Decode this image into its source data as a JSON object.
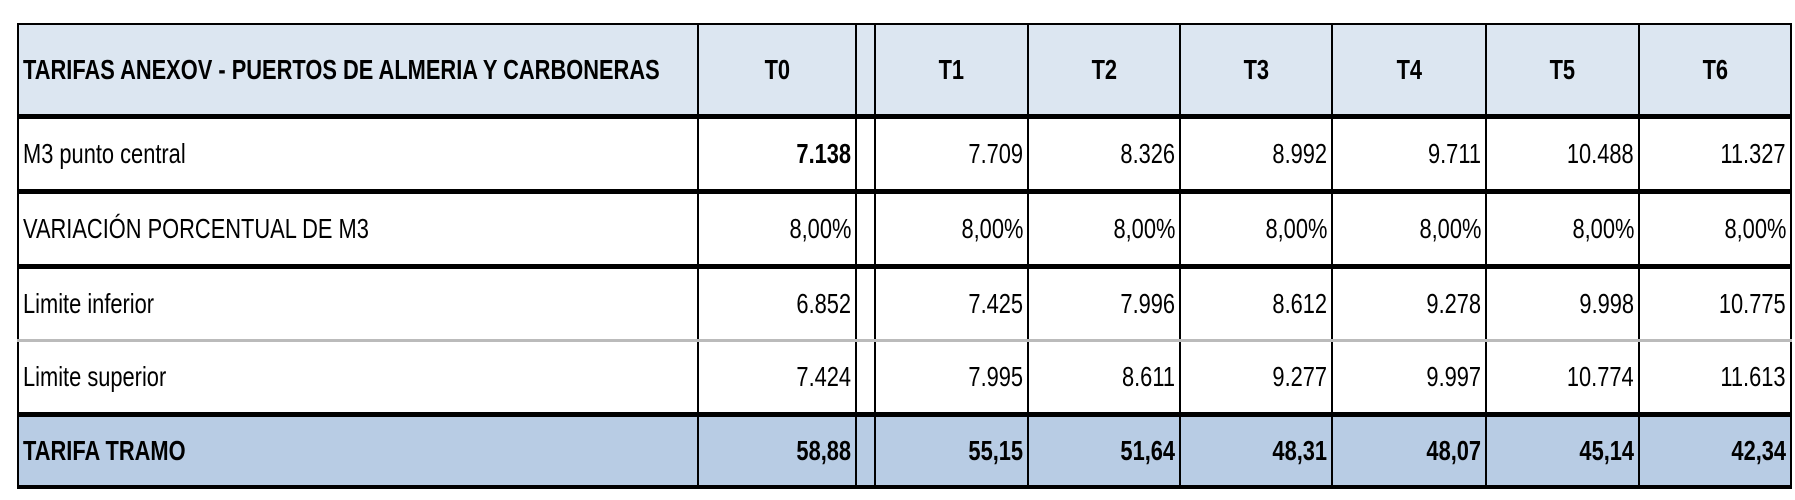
{
  "table": {
    "header": [
      "TARIFAS ANEXOV - PUERTOS DE ALMERIA Y CARBONERAS",
      "T0",
      "T1",
      "T2",
      "T3",
      "T4",
      "T5",
      "T6"
    ],
    "rows": [
      [
        "M3 punto central",
        "7.138",
        "7.709",
        "8.326",
        "8.992",
        "9.711",
        "10.488",
        "11.327"
      ],
      [
        "VARIACIÓN PORCENTUAL DE  M3",
        "8,00%",
        "8,00%",
        "8,00%",
        "8,00%",
        "8,00%",
        "8,00%",
        "8,00%"
      ],
      [
        "Limite inferior",
        "6.852",
        "7.425",
        "7.996",
        "8.612",
        "9.278",
        "9.998",
        "10.775"
      ],
      [
        "Limite superior",
        "7.424",
        "7.995",
        "8.611",
        "9.277",
        "9.997",
        "10.774",
        "11.613"
      ],
      [
        "TARIFA TRAMO",
        "58,88",
        "55,15",
        "51,64",
        "48,31",
        "48,07",
        "45,14",
        "42,34"
      ]
    ]
  }
}
